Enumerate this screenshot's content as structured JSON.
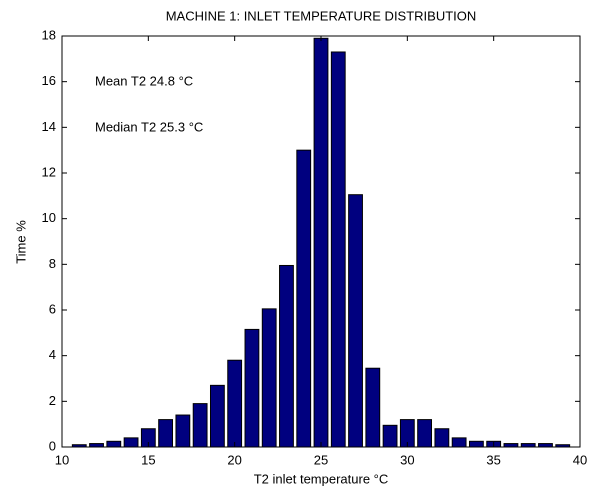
{
  "chart_data": {
    "type": "histogram",
    "title": "MACHINE 1: INLET TEMPERATURE DISTRIBUTION",
    "x_label": "T2 inlet temperature °C",
    "y_label": "Time %",
    "annotations": [
      "Mean T2 24.8 °C",
      "Median T2 25.3 °C"
    ],
    "bins": [
      10.5,
      11.5,
      12.5,
      13.5,
      14.5,
      15.5,
      16.5,
      17.5,
      18.5,
      19.5,
      20.5,
      21.5,
      22.5,
      23.5,
      24.5,
      25.5,
      26.5,
      27.5,
      28.5,
      29.5,
      30.5,
      31.5,
      32.5,
      33.5,
      34.5,
      35.5,
      36.5,
      37.5,
      38.5,
      39.5
    ],
    "values": [
      0.1,
      0.15,
      0.25,
      0.4,
      0.8,
      1.2,
      1.4,
      1.9,
      2.7,
      3.8,
      5.15,
      6.05,
      7.95,
      13.0,
      17.9,
      17.3,
      11.05,
      3.45,
      0.95,
      1.2,
      1.2,
      0.8,
      0.4,
      0.25,
      0.25,
      0.15,
      0.15,
      0.15,
      0.1
    ],
    "color": "#00007f",
    "xlim": [
      10,
      40
    ],
    "xticks": [
      10,
      15,
      20,
      25,
      30,
      35,
      40
    ],
    "ylim": [
      0,
      18
    ],
    "yticks": [
      0,
      2,
      4,
      6,
      8,
      10,
      12,
      14,
      16,
      18
    ],
    "grid": false
  }
}
